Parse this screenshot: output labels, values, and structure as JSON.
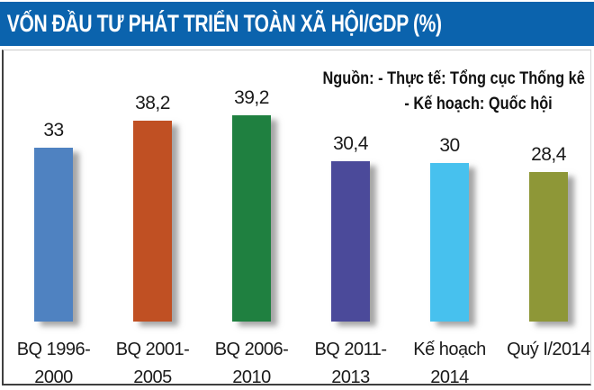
{
  "header": {
    "title": "VỐN ĐẦU TƯ PHÁT TRIỂN TOÀN XÃ HỘI/GDP (%)",
    "background_color": "#0b63ad",
    "text_color": "#ffffff"
  },
  "source_note": {
    "line1": "Nguồn: - Thực tế: Tổng cục Thống kê",
    "line2": "- Kế hoạch: Quốc hội"
  },
  "chart_data": {
    "type": "bar",
    "title": "VỐN ĐẦU TƯ PHÁT TRIỂN TOÀN XÃ HỘI/GDP (%)",
    "categories": [
      "BQ 1996-2000",
      "BQ 2001-2005",
      "BQ 2006-2010",
      "BQ 2011-2013",
      "Kế hoạch 2014",
      "Quý I/2014"
    ],
    "category_lines": [
      [
        "BQ 1996-",
        "2000"
      ],
      [
        "BQ 2001-",
        "2005"
      ],
      [
        "BQ 2006-",
        "2010"
      ],
      [
        "BQ 2011-",
        "2013"
      ],
      [
        "Kế hoạch",
        "2014"
      ],
      [
        "Quý I/2014"
      ]
    ],
    "values": [
      33,
      38.2,
      39.2,
      30.4,
      30,
      28.4
    ],
    "value_labels": [
      "33",
      "38,2",
      "39,2",
      "30,4",
      "30",
      "28,4"
    ],
    "bar_colors": [
      "#4f82c1",
      "#c05023",
      "#1f8040",
      "#4b4a9a",
      "#47c1ee",
      "#8e9737"
    ],
    "unit": "% GDP",
    "ylim": [
      0,
      52
    ],
    "grid": false,
    "legend": "none",
    "annotations": [
      "Nguồn: - Thực tế: Tổng cục Thống kê",
      "- Kế hoạch: Quốc hội"
    ]
  }
}
